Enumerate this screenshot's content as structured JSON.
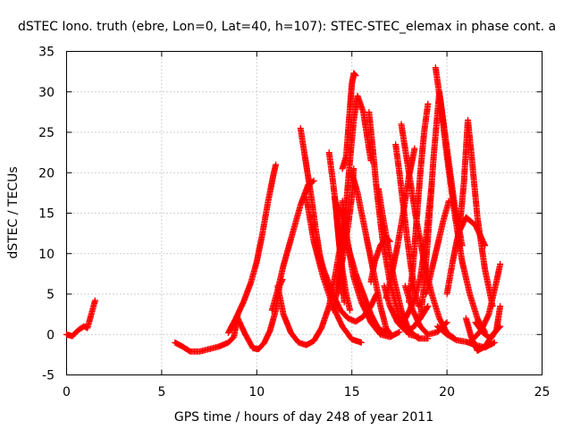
{
  "chart_data": {
    "type": "scatter",
    "title": "dSTEC Iono. truth (ebre, Lon=0, Lat=40, h=107): STEC-STEC_elemax in phase cont. a",
    "xlabel": "GPS time / hours of day 248 of year 2011",
    "ylabel": "dSTEC  / TECUs",
    "xlim": [
      0,
      25
    ],
    "ylim": [
      -5,
      35
    ],
    "x_ticks": [
      "0",
      "5",
      "10",
      "15",
      "20",
      "25"
    ],
    "y_ticks": [
      "-5",
      "0",
      "5",
      "10",
      "15",
      "20",
      "25",
      "30",
      "35"
    ],
    "grid": true,
    "marker": "+",
    "color": "#ff0000",
    "arcs": [
      {
        "x": [
          0.0,
          0.3,
          0.6,
          0.9,
          1.1,
          1.3,
          1.5
        ],
        "y": [
          0.0,
          -0.2,
          0.5,
          1.0,
          0.8,
          2.5,
          4.2
        ]
      },
      {
        "x": [
          5.7,
          6.1,
          6.5,
          7.0,
          7.5,
          8.0,
          8.5,
          8.8,
          9.0
        ],
        "y": [
          -1.0,
          -1.5,
          -2.1,
          -2.1,
          -1.8,
          -1.5,
          -1.0,
          -0.3,
          2.4
        ]
      },
      {
        "x": [
          8.5,
          8.9,
          9.3,
          9.7,
          10.0,
          10.3,
          10.6,
          10.9,
          11.0
        ],
        "y": [
          0.2,
          2.0,
          4.0,
          6.5,
          9.0,
          12.5,
          16.5,
          20.0,
          21.0
        ]
      },
      {
        "x": [
          9.0,
          9.4,
          9.8,
          10.1,
          10.4,
          10.7,
          11.0,
          11.2,
          11.35
        ],
        "y": [
          2.0,
          0.0,
          -1.7,
          -1.8,
          -1.0,
          0.5,
          3.0,
          6.0,
          6.8
        ]
      },
      {
        "x": [
          10.8,
          11.1,
          11.4,
          11.7,
          12.0,
          12.3,
          12.7,
          13.0
        ],
        "y": [
          3.0,
          5.5,
          8.5,
          11.0,
          13.5,
          16.0,
          18.5,
          19.0
        ]
      },
      {
        "x": [
          11.1,
          11.4,
          11.8,
          12.2,
          12.6,
          13.0,
          13.4,
          13.8,
          14.1,
          14.4,
          14.6
        ],
        "y": [
          6.0,
          2.5,
          0.2,
          -1.0,
          -1.3,
          -0.8,
          0.8,
          3.5,
          7.0,
          11.0,
          13.5
        ]
      },
      {
        "x": [
          12.3,
          12.5,
          12.7,
          12.9,
          13.1,
          13.3,
          13.5
        ],
        "y": [
          25.5,
          22.5,
          19.5,
          16.5,
          13.0,
          10.0,
          8.0
        ]
      },
      {
        "x": [
          12.6,
          13.0,
          13.5,
          14.0,
          14.5,
          15.0,
          15.5
        ],
        "y": [
          17.0,
          11.5,
          7.0,
          3.5,
          1.0,
          -0.6,
          -1.0
        ]
      },
      {
        "x": [
          13.2,
          13.6,
          14.0,
          14.4,
          14.8,
          15.2,
          15.6,
          16.0,
          16.3
        ],
        "y": [
          10.0,
          7.5,
          5.0,
          3.0,
          2.0,
          1.6,
          2.2,
          3.5,
          5.0
        ]
      },
      {
        "x": [
          13.8,
          14.0,
          14.2,
          14.4,
          14.6
        ],
        "y": [
          22.5,
          19.0,
          15.0,
          9.5,
          4.0
        ]
      },
      {
        "x": [
          14.0,
          14.3,
          14.6,
          14.8,
          15.0,
          15.1
        ],
        "y": [
          3.0,
          6.5,
          10.5,
          13.5,
          17.0,
          20.5
        ]
      },
      {
        "x": [
          14.1,
          14.3,
          14.5,
          14.7,
          14.9
        ],
        "y": [
          17.0,
          12.0,
          8.0,
          5.0,
          3.0
        ]
      },
      {
        "x": [
          14.3,
          14.5,
          14.7,
          14.9,
          15.1,
          15.3,
          15.6,
          16.0
        ],
        "y": [
          5.0,
          11.0,
          16.0,
          21.5,
          26.5,
          29.5,
          27.5,
          21.5
        ]
      },
      {
        "x": [
          14.3,
          14.6,
          14.9,
          15.2,
          15.6,
          16.0,
          16.4,
          16.8
        ],
        "y": [
          16.0,
          13.0,
          10.0,
          7.5,
          5.0,
          2.5,
          0.7,
          0.3
        ]
      },
      {
        "x": [
          14.5,
          14.8,
          15.1,
          15.5,
          16.0,
          16.5,
          17.0,
          17.5
        ],
        "y": [
          16.5,
          11.0,
          7.0,
          4.0,
          1.5,
          0.0,
          -0.3,
          0.3
        ]
      },
      {
        "x": [
          14.5,
          14.7,
          14.9,
          15.0,
          15.1,
          15.2
        ],
        "y": [
          20.5,
          22.0,
          28.0,
          31.0,
          32.3,
          32.0
        ]
      },
      {
        "x": [
          15.0,
          15.3,
          15.6,
          15.9,
          16.2,
          16.5,
          16.8,
          17.1
        ],
        "y": [
          20.0,
          17.5,
          14.0,
          10.5,
          7.0,
          3.5,
          0.8,
          -0.2
        ]
      },
      {
        "x": [
          15.9,
          16.1,
          16.3,
          16.6,
          17.0,
          17.5,
          18.0,
          18.5
        ],
        "y": [
          27.5,
          23.0,
          18.0,
          12.0,
          6.5,
          2.0,
          0.0,
          -0.3
        ]
      },
      {
        "x": [
          16.4,
          16.6,
          16.9,
          17.2,
          17.6,
          18.0,
          18.5,
          19.0
        ],
        "y": [
          18.0,
          15.0,
          11.0,
          7.0,
          3.0,
          0.5,
          -0.5,
          -0.5
        ]
      },
      {
        "x": [
          16.0,
          16.2,
          16.5,
          16.8,
          17.0
        ],
        "y": [
          6.5,
          9.0,
          11.0,
          12.0,
          11.5
        ]
      },
      {
        "x": [
          16.8,
          17.1,
          17.4,
          17.7,
          18.0,
          18.3
        ],
        "y": [
          4.5,
          7.5,
          11.0,
          15.0,
          19.5,
          23.0
        ]
      },
      {
        "x": [
          16.7,
          17.0,
          17.4,
          17.8,
          18.2,
          18.6,
          19.0
        ],
        "y": [
          6.0,
          3.5,
          1.5,
          0.5,
          0.8,
          2.0,
          3.5
        ]
      },
      {
        "x": [
          17.3,
          17.5,
          17.7,
          17.9,
          18.1,
          18.3,
          18.5
        ],
        "y": [
          23.5,
          20.0,
          16.0,
          12.0,
          8.5,
          5.5,
          3.5
        ]
      },
      {
        "x": [
          17.6,
          18.0,
          18.4,
          18.8,
          19.2,
          19.6,
          20.0,
          20.4
        ],
        "y": [
          26.0,
          20.0,
          14.0,
          9.0,
          5.0,
          2.0,
          0.2,
          -0.5
        ]
      },
      {
        "x": [
          18.0,
          18.2,
          18.4,
          18.6,
          18.8,
          19.0
        ],
        "y": [
          4.0,
          8.0,
          14.0,
          20.0,
          25.0,
          28.5
        ]
      },
      {
        "x": [
          17.7,
          18.0,
          18.3,
          18.6,
          18.9,
          19.2
        ],
        "y": [
          1.5,
          2.8,
          4.5,
          7.0,
          12.0,
          18.5
        ]
      },
      {
        "x": [
          17.8,
          18.2,
          18.6,
          19.0,
          19.5,
          20.0
        ],
        "y": [
          6.0,
          3.0,
          1.0,
          0.0,
          0.3,
          1.5
        ]
      },
      {
        "x": [
          18.6,
          18.8,
          19.0,
          19.3,
          19.6,
          20.0,
          20.4,
          20.8
        ],
        "y": [
          2.0,
          6.0,
          12.0,
          22.0,
          30.0,
          23.0,
          16.0,
          11.0
        ]
      },
      {
        "x": [
          19.4,
          19.7,
          20.0,
          20.4,
          20.8,
          21.2,
          21.6,
          22.0
        ],
        "y": [
          33.0,
          28.0,
          22.0,
          15.0,
          9.0,
          5.0,
          2.0,
          0.3
        ]
      },
      {
        "x": [
          18.9,
          19.2,
          19.5,
          19.8,
          20.1
        ],
        "y": [
          5.0,
          8.0,
          11.0,
          14.0,
          16.5
        ]
      },
      {
        "x": [
          19.5,
          20.0,
          20.5,
          21.0,
          21.5,
          22.0,
          22.5
        ],
        "y": [
          1.0,
          0.0,
          -0.7,
          -0.9,
          -1.3,
          -1.6,
          -1.0
        ]
      },
      {
        "x": [
          20.0,
          20.3,
          20.6,
          21.0,
          21.5,
          22.0
        ],
        "y": [
          5.0,
          9.0,
          12.5,
          14.5,
          13.5,
          11.0
        ]
      },
      {
        "x": [
          20.7,
          20.9,
          21.1,
          21.3,
          21.6,
          22.0,
          22.4
        ],
        "y": [
          14.0,
          19.0,
          26.5,
          22.0,
          14.5,
          8.0,
          3.5
        ]
      },
      {
        "x": [
          21.0,
          21.3,
          21.6,
          22.0,
          22.4,
          22.8
        ],
        "y": [
          2.0,
          -0.5,
          -2.0,
          -1.5,
          0.0,
          1.0
        ]
      },
      {
        "x": [
          21.4,
          21.8,
          22.2,
          22.6,
          22.8
        ],
        "y": [
          -0.5,
          0.5,
          2.5,
          6.5,
          8.7
        ]
      },
      {
        "x": [
          21.5,
          21.9,
          22.3,
          22.6,
          22.8
        ],
        "y": [
          1.5,
          0.2,
          -0.5,
          0.5,
          3.5
        ]
      }
    ]
  }
}
